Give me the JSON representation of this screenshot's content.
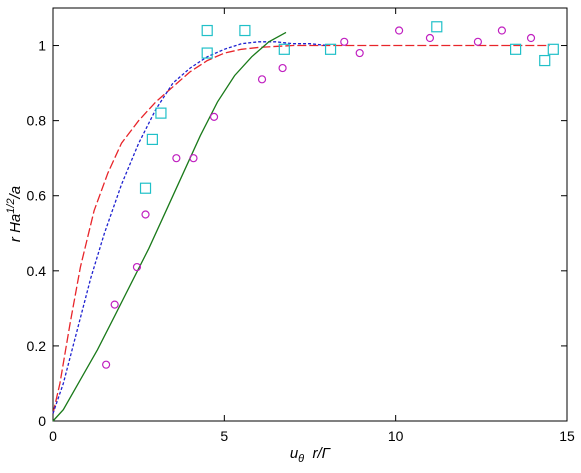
{
  "chart_data": {
    "type": "scatter",
    "title": "",
    "xlabel": "u_θ  r/Γ",
    "ylabel": "r Ha^1/2/a",
    "xlabel_parts": {
      "main": "u",
      "sub": "θ",
      "rest": "  r/Γ"
    },
    "ylabel_parts": {
      "pre": "r Ha",
      "sup": "1/2",
      "post": "/a"
    },
    "xlim": [
      0,
      15
    ],
    "ylim": [
      0,
      1.1
    ],
    "xticks": [
      0,
      5,
      10,
      15
    ],
    "yticks": [
      0,
      0.2,
      0.4,
      0.6,
      0.8,
      1
    ],
    "xtick_labels": [
      "0",
      "5",
      "10",
      "15"
    ],
    "ytick_labels": [
      "0",
      "0.2",
      "0.4",
      "0.6",
      "0.8",
      "1"
    ],
    "grid": false,
    "legend": "none",
    "series": [
      {
        "kind": "line",
        "style": "dash",
        "color": "#e8252a",
        "x": [
          0,
          0.2,
          0.5,
          0.8,
          1.2,
          1.6,
          2.0,
          2.5,
          3.0,
          3.5,
          4.0,
          4.5,
          5.0,
          5.5,
          6.0,
          7.0,
          8.0,
          10.0,
          12.0,
          14.5
        ],
        "y": [
          0.02,
          0.1,
          0.26,
          0.41,
          0.56,
          0.66,
          0.74,
          0.8,
          0.85,
          0.89,
          0.93,
          0.96,
          0.98,
          0.99,
          0.995,
          1.0,
          1.0,
          1.0,
          1.0,
          1.0
        ]
      },
      {
        "kind": "line",
        "style": "dot",
        "color": "#1f22d0",
        "x": [
          0,
          0.3,
          0.7,
          1.1,
          1.5,
          2.0,
          2.5,
          3.0,
          3.5,
          4.0,
          4.5,
          5.0,
          5.5,
          6.0,
          6.5,
          7.0,
          7.5,
          8.0
        ],
        "y": [
          0.02,
          0.1,
          0.24,
          0.38,
          0.5,
          0.63,
          0.74,
          0.83,
          0.9,
          0.94,
          0.97,
          0.99,
          1.005,
          1.01,
          1.01,
          1.005,
          1.005,
          1.0
        ]
      },
      {
        "kind": "line",
        "style": "solid",
        "color": "#1a7a1a",
        "x": [
          0,
          0.3,
          0.8,
          1.3,
          1.8,
          2.3,
          2.8,
          3.3,
          3.8,
          4.3,
          4.8,
          5.3,
          5.8,
          6.3,
          6.8
        ],
        "y": [
          0.0,
          0.03,
          0.11,
          0.19,
          0.28,
          0.37,
          0.46,
          0.56,
          0.66,
          0.76,
          0.85,
          0.92,
          0.97,
          1.01,
          1.035
        ]
      },
      {
        "kind": "markers",
        "marker": "circle",
        "color": "#c020c0",
        "x": [
          1.55,
          1.8,
          2.45,
          2.7,
          3.6,
          4.1,
          4.7,
          6.1,
          6.7,
          8.5,
          8.95,
          10.1,
          11.0,
          12.4,
          13.1,
          13.95
        ],
        "y": [
          0.15,
          0.31,
          0.41,
          0.55,
          0.7,
          0.7,
          0.81,
          0.91,
          0.94,
          1.01,
          0.98,
          1.04,
          1.02,
          1.01,
          1.04,
          1.02
        ]
      },
      {
        "kind": "markers",
        "marker": "square",
        "color": "#20c0c8",
        "x": [
          2.7,
          2.9,
          3.15,
          4.5,
          4.5,
          5.6,
          6.75,
          8.1,
          11.2,
          13.5,
          14.35,
          14.6
        ],
        "y": [
          0.62,
          0.75,
          0.82,
          0.98,
          1.04,
          1.04,
          0.99,
          0.99,
          1.05,
          0.99,
          0.96,
          0.99
        ]
      }
    ]
  }
}
